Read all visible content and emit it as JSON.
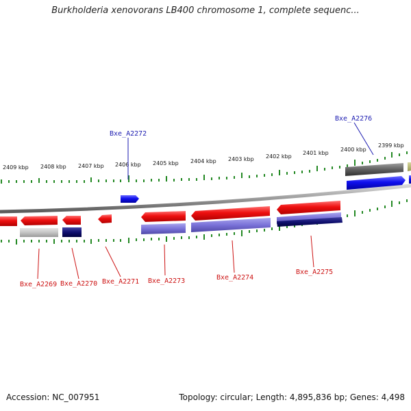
{
  "title": "Burkholderia xenovorans LB400 chromosome 1, complete sequenc...",
  "footer": {
    "accession": "Accession: NC_007951",
    "summary": "Topology: circular; Length: 4,895,836 bp; Genes: 4,498"
  },
  "colors": {
    "forward_strand": "#1010e0",
    "reverse_strand": "#e01010",
    "label_forward": "#1a1ab0",
    "label_reverse": "#cc1010",
    "tick": "#228822",
    "backbone": "#888888"
  },
  "kbp_labels": [
    "2409 kbp",
    "2408 kbp",
    "2407 kbp",
    "2406 kbp",
    "2405 kbp",
    "2404 kbp",
    "2403 kbp",
    "2402 kbp",
    "2401 kbp",
    "2400 kbp",
    "2399 kbp"
  ],
  "gene_labels": {
    "A2272": "Bxe_A2272",
    "A2276": "Bxe_A2276",
    "A2269": "Bxe_A2269",
    "A2270": "Bxe_A2270",
    "A2271": "Bxe_A2271",
    "A2273": "Bxe_A2273",
    "A2274": "Bxe_A2274",
    "A2275": "Bxe_A2275"
  }
}
